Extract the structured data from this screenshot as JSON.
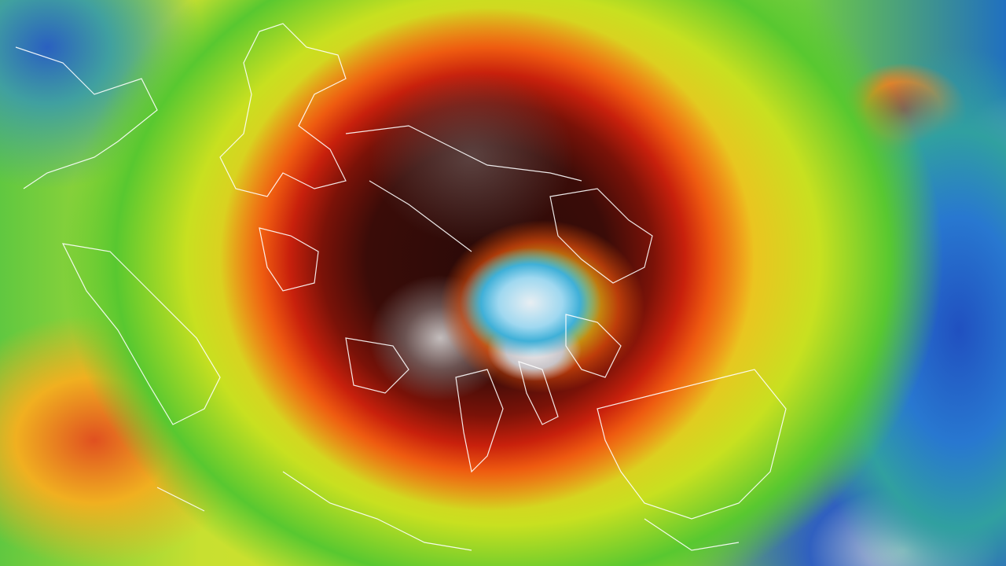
{
  "image": {
    "subject": "typhoon-infrared-satellite",
    "palette": {
      "eye": "#9fd8f0",
      "cold_cloud_tops": "#2a0a08",
      "red_band": "#c8200c",
      "orange_band": "#e8801a",
      "yellow_band": "#f0c020",
      "green_band": "#58c830",
      "blue_band": "#2050c0",
      "coastlines": "#ffffff"
    }
  }
}
